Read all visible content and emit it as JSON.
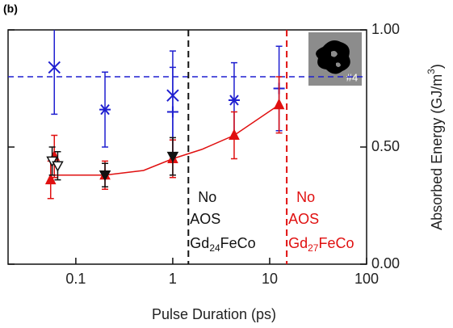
{
  "chart_data": {
    "type": "scatter",
    "panel_label": "(b)",
    "x_label": "Pulse Duration (ps)",
    "y_label": [
      "Absorbed Energy (GJ/m",
      "3",
      ")"
    ],
    "x_scale": "log",
    "xlim": [
      0.02,
      100
    ],
    "xticks": [
      0.1,
      1,
      10,
      100
    ],
    "ylim": [
      0,
      1
    ],
    "yticks": [
      {
        "value": 0,
        "label": "0.00"
      },
      {
        "value": 0.5,
        "label": "0.50"
      },
      {
        "value": 1,
        "label": "1.00"
      }
    ],
    "series": [
      {
        "color": "#1f1fd0",
        "x": [
          0.06,
          0.2,
          1,
          1,
          4.3,
          12.5
        ],
        "values": [
          0.84,
          0.66,
          0.72,
          0.65,
          0.7,
          0.75
        ],
        "errors": [
          0.2,
          0.16,
          0.19,
          0.19,
          0.16,
          0.18
        ],
        "markers": [
          "x",
          "asterisk",
          "x",
          "plus",
          "asterisk",
          "plus"
        ]
      },
      {
        "color": "#e01010",
        "x": [
          0.055,
          0.06,
          0.2,
          1,
          4.3,
          12.5
        ],
        "values": [
          0.36,
          0.46,
          0.38,
          0.45,
          0.55,
          0.68
        ],
        "errors": [
          0.08,
          0.09,
          0.06,
          0.08,
          0.1,
          0.12
        ],
        "markers": [
          "triangle-up",
          "triangle-up",
          "triangle-up",
          "triangle-up",
          "triangle-up",
          "triangle-up"
        ]
      },
      {
        "color": "#111111",
        "x": [
          0.057,
          0.065,
          0.2,
          1
        ],
        "values": [
          0.44,
          0.42,
          0.38,
          0.46
        ],
        "errors": [
          0.06,
          0.06,
          0.05,
          0.08
        ],
        "markers": [
          "triangle-down-open",
          "triangle-down-open",
          "triangle-down",
          "triangle-down"
        ]
      }
    ],
    "fit_line": {
      "color": "#e01010",
      "x": [
        0.055,
        0.2,
        0.5,
        1,
        2,
        4.3,
        12.5
      ],
      "values": [
        0.38,
        0.38,
        0.4,
        0.45,
        0.49,
        0.55,
        0.68
      ]
    },
    "hlines": [
      {
        "value": 0.8,
        "color": "#1f1fd0"
      }
    ],
    "vlines": [
      {
        "value": 1.45,
        "color": "#111111"
      },
      {
        "value": 15,
        "color": "#e01010"
      }
    ],
    "annotations": [
      {
        "color": "#111111",
        "lines": [
          "No",
          "AOS"
        ],
        "formula": [
          "Gd",
          "24",
          "FeCo"
        ]
      },
      {
        "color": "#e01010",
        "lines": [
          "No",
          "AOS"
        ],
        "formula": [
          "Gd",
          "27",
          "FeCo"
        ]
      }
    ],
    "inset_label": "#4"
  }
}
